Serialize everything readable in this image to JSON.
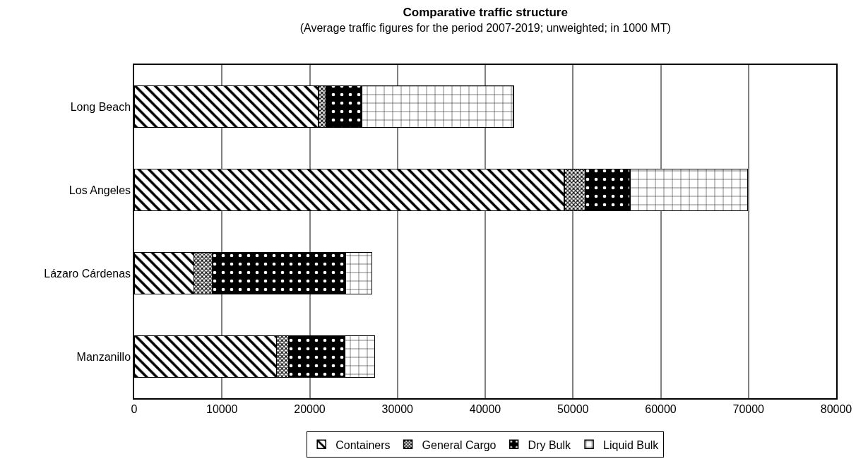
{
  "chart_data": {
    "type": "bar",
    "orientation": "horizontal",
    "stacked": true,
    "title": "Comparative traffic structure",
    "subtitle": "(Average traffic figures for the period 2007-2019; unweighted; in 1000 MT)",
    "categories": [
      "Long Beach",
      "Los Angeles",
      "Lázaro Cárdenas",
      "Manzanillo"
    ],
    "series": [
      {
        "name": "Containers",
        "color": "#000000",
        "values": [
          21000,
          49000,
          6800,
          16200
        ]
      },
      {
        "name": "General Cargo",
        "color": "#000000",
        "values": [
          900,
          2400,
          2100,
          1400
        ]
      },
      {
        "name": "Dry Bulk",
        "color": "#000000",
        "values": [
          4000,
          5100,
          15200,
          6400
        ]
      },
      {
        "name": "Liquid Bulk",
        "color": "#000000",
        "values": [
          17300,
          13400,
          3000,
          3400
        ]
      }
    ],
    "xlim": [
      0,
      80000
    ],
    "xticks": [
      0,
      10000,
      20000,
      30000,
      40000,
      50000,
      60000,
      70000,
      80000
    ],
    "grid": "x",
    "legend": "bottom"
  }
}
